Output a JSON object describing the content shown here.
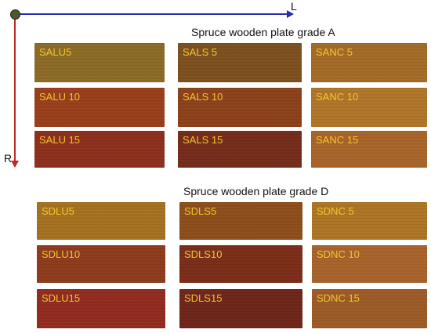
{
  "axes": {
    "horizontal_label": "L",
    "vertical_label": "R"
  },
  "group_a": {
    "title": "Spruce wooden plate grade A",
    "plates": [
      {
        "label": "SALU5",
        "color": "#8b6a24"
      },
      {
        "label": "SALS 5",
        "color": "#7d4f1d"
      },
      {
        "label": "SANC 5",
        "color": "#a46a26"
      },
      {
        "label": "SALU 10",
        "color": "#9a3d1a"
      },
      {
        "label": "SALS 10",
        "color": "#8c4018"
      },
      {
        "label": "SANC 10",
        "color": "#b07528"
      },
      {
        "label": "SALU 15",
        "color": "#8d2e1c"
      },
      {
        "label": "SALS 15",
        "color": "#742b18"
      },
      {
        "label": "SANC 15",
        "color": "#a86428"
      }
    ]
  },
  "group_d": {
    "title": "Spruce wooden plate grade D",
    "plates": [
      {
        "label": "SDLU5",
        "color": "#a5711f"
      },
      {
        "label": "SDLS5",
        "color": "#8c4d1a"
      },
      {
        "label": "SDNC 5",
        "color": "#ad7424"
      },
      {
        "label": "SDLU10",
        "color": "#8d3a1b"
      },
      {
        "label": "SDLS10",
        "color": "#7a2c16"
      },
      {
        "label": "SDNC 10",
        "color": "#a8622a"
      },
      {
        "label": "SDLU15",
        "color": "#922a1e"
      },
      {
        "label": "SDLS15",
        "color": "#6e2418"
      },
      {
        "label": "SDNC 15",
        "color": "#9c5a25"
      }
    ]
  }
}
